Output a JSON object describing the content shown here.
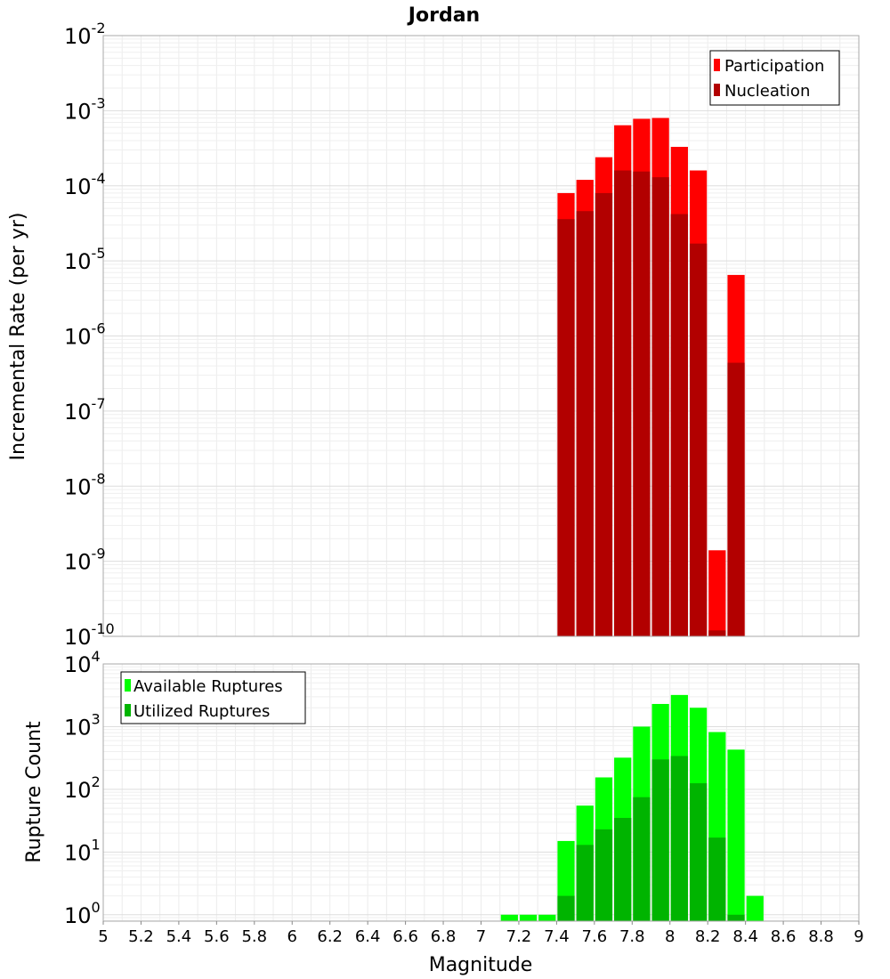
{
  "chart_data": [
    {
      "type": "bar",
      "title": "Jordan",
      "xlabel": "",
      "ylabel": "Incremental Rate (per yr)",
      "yscale": "log",
      "ylim": [
        1e-10,
        0.01
      ],
      "xlim": [
        5,
        9
      ],
      "bin_width": 0.1,
      "y_tick_bases": [
        "10",
        "10",
        "10",
        "10",
        "10",
        "10",
        "10",
        "10",
        "10"
      ],
      "y_tick_exponents": [
        "-10",
        "-9",
        "-8",
        "-7",
        "-6",
        "-5",
        "-4",
        "-3",
        "-2"
      ],
      "y_tick_values": [
        1e-10,
        1e-09,
        1e-08,
        1e-07,
        1e-06,
        1e-05,
        0.0001,
        0.001,
        0.01
      ],
      "legend_position": "top-right",
      "series": [
        {
          "name": "Participation",
          "color": "#ff0000",
          "x": [
            7.45,
            7.55,
            7.65,
            7.75,
            7.85,
            7.95,
            8.05,
            8.15,
            8.25,
            8.35
          ],
          "values": [
            8e-05,
            0.00012,
            0.00024,
            0.00064,
            0.00078,
            0.0008,
            0.00033,
            0.00016,
            1.4e-09,
            6.5e-06
          ]
        },
        {
          "name": "Nucleation",
          "color": "#b20000",
          "x": [
            7.45,
            7.55,
            7.65,
            7.75,
            7.85,
            7.95,
            8.05,
            8.15,
            8.25,
            8.35
          ],
          "values": [
            3.6e-05,
            4.6e-05,
            8e-05,
            0.00016,
            0.000155,
            0.00013,
            4.2e-05,
            1.7e-05,
            1.2e-10,
            4.4e-07
          ]
        }
      ]
    },
    {
      "type": "bar",
      "title": "",
      "xlabel": "Magnitude",
      "ylabel": "Rupture Count",
      "yscale": "log",
      "ylim": [
        0.79,
        10000
      ],
      "xlim": [
        5,
        9
      ],
      "bin_width": 0.1,
      "x_tick_labels": [
        "5",
        "5.2",
        "5.4",
        "5.6",
        "5.8",
        "6",
        "6.2",
        "6.4",
        "6.6",
        "6.8",
        "7",
        "7.2",
        "7.4",
        "7.6",
        "7.8",
        "8",
        "8.2",
        "8.4",
        "8.6",
        "8.8",
        "9"
      ],
      "x_tick_values": [
        5,
        5.2,
        5.4,
        5.6,
        5.8,
        6,
        6.2,
        6.4,
        6.6,
        6.8,
        7,
        7.2,
        7.4,
        7.6,
        7.8,
        8,
        8.2,
        8.4,
        8.6,
        8.8,
        9
      ],
      "y_tick_bases": [
        "10",
        "10",
        "10",
        "10",
        "10"
      ],
      "y_tick_exponents": [
        "0",
        "1",
        "2",
        "3",
        "4"
      ],
      "y_tick_values": [
        1,
        10,
        100,
        1000,
        10000
      ],
      "legend_position": "top-left",
      "series": [
        {
          "name": "Available Ruptures",
          "color": "#00ff00",
          "x": [
            7.15,
            7.25,
            7.35,
            7.45,
            7.55,
            7.65,
            7.75,
            7.85,
            7.95,
            8.05,
            8.15,
            8.25,
            8.35,
            8.45
          ],
          "values": [
            1,
            1,
            1,
            15,
            55,
            155,
            320,
            1000,
            2300,
            3200,
            2000,
            820,
            430,
            2
          ]
        },
        {
          "name": "Utilized Ruptures",
          "color": "#00b400",
          "x": [
            7.45,
            7.55,
            7.65,
            7.75,
            7.85,
            7.95,
            8.05,
            8.15,
            8.25,
            8.35
          ],
          "values": [
            2,
            13,
            23,
            35,
            75,
            300,
            340,
            125,
            17,
            1
          ]
        }
      ]
    }
  ]
}
